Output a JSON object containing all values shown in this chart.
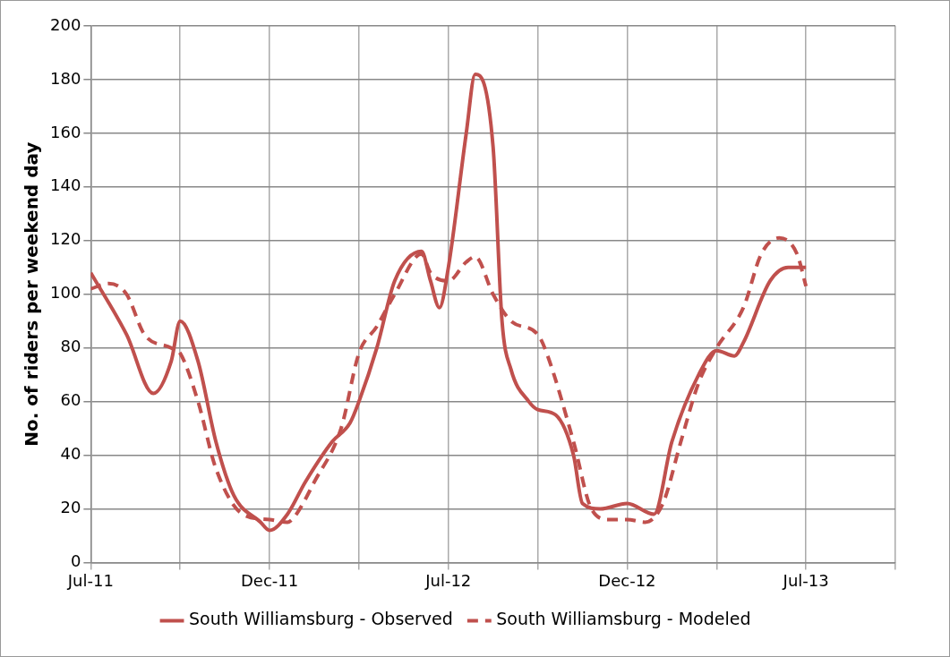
{
  "chart_data": {
    "type": "line",
    "ylabel": "No. of riders per weekend day",
    "categories": [
      "Jul-11",
      null,
      null,
      null,
      null,
      null,
      null,
      null,
      null,
      null,
      null,
      null,
      null,
      null,
      null,
      null,
      null,
      null,
      null,
      null,
      "Dec-11",
      null,
      null,
      null,
      null,
      null,
      null,
      null,
      null,
      null,
      null,
      null,
      null,
      null,
      null,
      null,
      null,
      null,
      null,
      null,
      "Jul-12",
      null,
      null,
      null,
      null,
      null,
      null,
      null,
      null,
      null,
      null,
      null,
      null,
      null,
      null,
      null,
      null,
      null,
      null,
      null,
      "Dec-12",
      null,
      null,
      null,
      null,
      null,
      null,
      null,
      null,
      null,
      null,
      null,
      null,
      null,
      null,
      null,
      null,
      null,
      null,
      null,
      "Jul-13",
      null,
      null,
      null,
      null,
      null,
      null,
      null,
      null,
      null,
      null
    ],
    "ylim": [
      0,
      200
    ],
    "yticks": [
      0,
      20,
      40,
      60,
      80,
      100,
      120,
      140,
      160,
      180,
      200
    ],
    "grid": true,
    "legend": "bottom",
    "marker": "none",
    "series": [
      {
        "name": "South Williamsburg - Observed",
        "color": "#c0504d",
        "line_style": "solid",
        "values": [
          108,
          null,
          null,
          null,
          85,
          null,
          null,
          63,
          null,
          75,
          90,
          null,
          75,
          null,
          45,
          null,
          25,
          null,
          null,
          15,
          12,
          null,
          18,
          null,
          30,
          null,
          null,
          45,
          null,
          52,
          60,
          null,
          80,
          null,
          105,
          null,
          null,
          116,
          105,
          95,
          110,
          null,
          160,
          182,
          null,
          155,
          90,
          72,
          null,
          60,
          57,
          null,
          55,
          null,
          40,
          22,
          null,
          20,
          null,
          null,
          22,
          null,
          null,
          18,
          null,
          45,
          null,
          null,
          70,
          null,
          79,
          null,
          77,
          82,
          null,
          null,
          105,
          null,
          110,
          null,
          110,
          null,
          null,
          null,
          null,
          null,
          null,
          null,
          null,
          null,
          null
        ]
      },
      {
        "name": "South Williamsburg - Modeled",
        "color": "#c0504d",
        "line_style": "dashed",
        "values": [
          102,
          null,
          104,
          null,
          100,
          null,
          85,
          null,
          null,
          80,
          78,
          null,
          60,
          null,
          35,
          null,
          null,
          18,
          null,
          null,
          16,
          null,
          15,
          18,
          null,
          30,
          null,
          null,
          50,
          null,
          78,
          null,
          88,
          null,
          100,
          null,
          null,
          115,
          108,
          null,
          105,
          null,
          112,
          114,
          null,
          100,
          null,
          90,
          null,
          null,
          85,
          78,
          null,
          null,
          45,
          null,
          20,
          null,
          16,
          null,
          16,
          null,
          15,
          null,
          22,
          null,
          45,
          null,
          67,
          null,
          80,
          null,
          null,
          95,
          null,
          115,
          null,
          121,
          null,
          115,
          103,
          null,
          null,
          null,
          null,
          null,
          null,
          null,
          null,
          null,
          null
        ]
      }
    ]
  }
}
